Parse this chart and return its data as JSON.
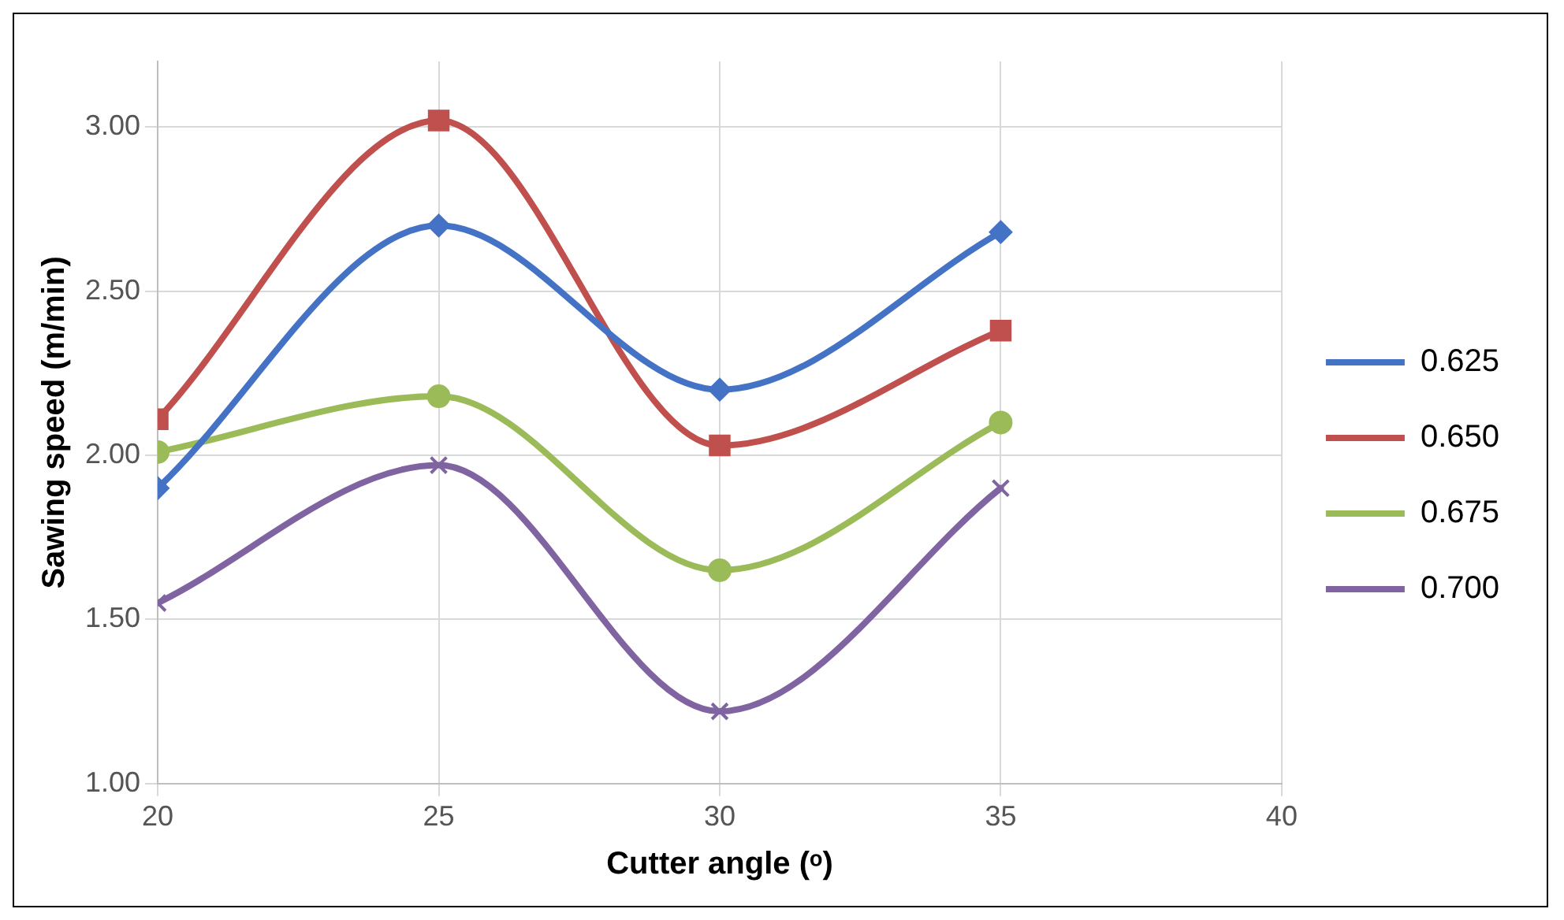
{
  "chart_data": {
    "type": "line",
    "xlabel": "Cutter angle (ᵒ)",
    "ylabel": "Sawing speed (m/min)",
    "x": [
      20,
      25,
      30,
      35
    ],
    "xlim": [
      20,
      40
    ],
    "xticks": [
      20,
      25,
      30,
      35,
      40
    ],
    "ylim": [
      1,
      3.2
    ],
    "yticks": [
      {
        "value": 1,
        "label": "1.00"
      },
      {
        "value": 1.5,
        "label": "1.50"
      },
      {
        "value": 2,
        "label": "2.00"
      },
      {
        "value": 2.5,
        "label": "2.50"
      },
      {
        "value": 3,
        "label": "3.00"
      }
    ],
    "grid": true,
    "legend": "right",
    "series": [
      {
        "name": "0.625",
        "color": "#4472c4",
        "marker": "diamond",
        "values": [
          1.9,
          2.7,
          2.2,
          2.68
        ]
      },
      {
        "name": "0.650",
        "color": "#c0504d",
        "marker": "square",
        "values": [
          2.11,
          3.02,
          2.03,
          2.38
        ]
      },
      {
        "name": "0.675",
        "color": "#9bbb59",
        "marker": "circle",
        "values": [
          2.01,
          2.18,
          1.65,
          2.1
        ]
      },
      {
        "name": "0.700",
        "color": "#8064a2",
        "marker": "cross",
        "values": [
          1.55,
          1.97,
          1.22,
          1.9
        ]
      }
    ]
  }
}
